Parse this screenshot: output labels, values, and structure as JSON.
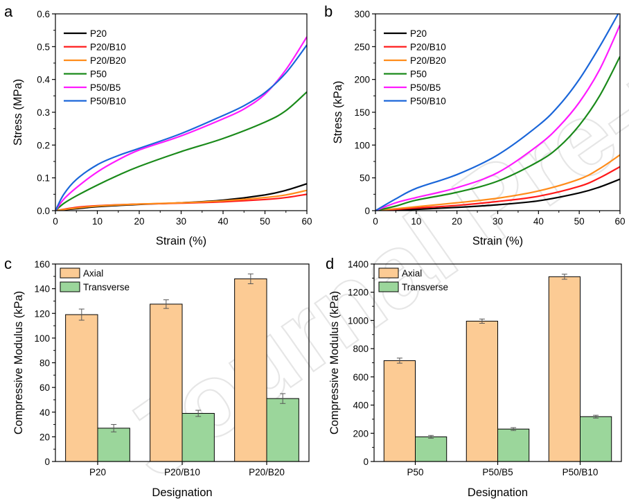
{
  "watermark": "Journal Pre-proofs",
  "colors": {
    "P20": "#000000",
    "P20/B10": "#ff1a1a",
    "P20/B20": "#ff8c1a",
    "P50": "#1a8a1a",
    "P50/B5": "#ff1aff",
    "P50/B10": "#1a66d9",
    "axial": "#fccb94",
    "transverse": "#9bd69b"
  },
  "chart_data": [
    {
      "panel": "a",
      "type": "line",
      "xlabel": "Strain (%)",
      "ylabel": "Stress (MPa)",
      "xlim": [
        0,
        60
      ],
      "ylim": [
        0,
        0.6
      ],
      "xticks": [
        "0",
        "10",
        "20",
        "30",
        "40",
        "50",
        "60"
      ],
      "yticks": [
        "0.0",
        "0.1",
        "0.2",
        "0.3",
        "0.4",
        "0.5",
        "0.6"
      ],
      "legend": [
        "P20",
        "P20/B10",
        "P20/B20",
        "P50",
        "P50/B5",
        "P50/B10"
      ],
      "series": [
        {
          "name": "P20",
          "x": [
            0,
            5,
            10,
            20,
            30,
            40,
            50,
            55,
            60
          ],
          "y": [
            0,
            0.006,
            0.012,
            0.019,
            0.024,
            0.032,
            0.048,
            0.062,
            0.082
          ]
        },
        {
          "name": "P20/B10",
          "x": [
            0,
            5,
            10,
            20,
            30,
            40,
            50,
            55,
            60
          ],
          "y": [
            0,
            0.01,
            0.015,
            0.02,
            0.023,
            0.027,
            0.034,
            0.04,
            0.05
          ]
        },
        {
          "name": "P20/B20",
          "x": [
            0,
            5,
            10,
            20,
            30,
            40,
            50,
            55,
            60
          ],
          "y": [
            0,
            0.008,
            0.014,
            0.02,
            0.024,
            0.03,
            0.04,
            0.048,
            0.062
          ]
        },
        {
          "name": "P50",
          "x": [
            0,
            2,
            5,
            10,
            15,
            20,
            30,
            40,
            50,
            55,
            60
          ],
          "y": [
            0,
            0.022,
            0.045,
            0.078,
            0.108,
            0.135,
            0.18,
            0.22,
            0.27,
            0.305,
            0.362
          ]
        },
        {
          "name": "P50/B5",
          "x": [
            0,
            2,
            5,
            10,
            15,
            20,
            30,
            40,
            45,
            50,
            55,
            60
          ],
          "y": [
            0,
            0.035,
            0.07,
            0.118,
            0.155,
            0.185,
            0.228,
            0.28,
            0.31,
            0.355,
            0.43,
            0.53
          ]
        },
        {
          "name": "P50/B10",
          "x": [
            0,
            2,
            5,
            10,
            15,
            20,
            30,
            40,
            45,
            50,
            55,
            60
          ],
          "y": [
            0,
            0.05,
            0.095,
            0.14,
            0.168,
            0.19,
            0.235,
            0.29,
            0.32,
            0.36,
            0.42,
            0.505
          ]
        }
      ]
    },
    {
      "panel": "b",
      "type": "line",
      "xlabel": "Strain (%)",
      "ylabel": "Stress (kPa)",
      "xlim": [
        0,
        60
      ],
      "ylim": [
        0,
        300
      ],
      "xticks": [
        "0",
        "10",
        "20",
        "30",
        "40",
        "50",
        "60"
      ],
      "yticks": [
        "0",
        "50",
        "100",
        "150",
        "200",
        "250",
        "300"
      ],
      "legend": [
        "P20",
        "P20/B10",
        "P20/B20",
        "P50",
        "P50/B5",
        "P50/B10"
      ],
      "series": [
        {
          "name": "P20",
          "x": [
            0,
            10,
            20,
            30,
            40,
            50,
            55,
            60
          ],
          "y": [
            0,
            2,
            5,
            9,
            15,
            27,
            36,
            48
          ]
        },
        {
          "name": "P20/B10",
          "x": [
            0,
            10,
            20,
            30,
            40,
            50,
            55,
            60
          ],
          "y": [
            0,
            4,
            8,
            14,
            22,
            37,
            50,
            67
          ]
        },
        {
          "name": "P20/B20",
          "x": [
            0,
            10,
            20,
            30,
            40,
            50,
            55,
            60
          ],
          "y": [
            0,
            6,
            12,
            19,
            30,
            48,
            64,
            85
          ]
        },
        {
          "name": "P50",
          "x": [
            0,
            5,
            10,
            20,
            30,
            40,
            45,
            50,
            55,
            60
          ],
          "y": [
            0,
            7,
            16,
            28,
            45,
            75,
            97,
            130,
            175,
            235
          ]
        },
        {
          "name": "P50/B5",
          "x": [
            0,
            5,
            10,
            20,
            30,
            40,
            45,
            50,
            55,
            60
          ],
          "y": [
            0,
            12,
            20,
            35,
            58,
            100,
            128,
            165,
            215,
            283
          ]
        },
        {
          "name": "P50/B10",
          "x": [
            0,
            5,
            10,
            20,
            30,
            40,
            45,
            50,
            55,
            60
          ],
          "y": [
            0,
            18,
            34,
            55,
            85,
            130,
            160,
            200,
            250,
            305
          ]
        }
      ]
    },
    {
      "panel": "c",
      "type": "bar",
      "xlabel": "Designation",
      "ylabel": "Compressive Modulus (kPa)",
      "ylim": [
        0,
        160
      ],
      "yticks": [
        "0",
        "20",
        "40",
        "60",
        "80",
        "100",
        "120",
        "140",
        "160"
      ],
      "categories": [
        "P20",
        "P20/B10",
        "P20/B20"
      ],
      "series": [
        {
          "name": "Axial",
          "values": [
            119,
            127.5,
            148
          ],
          "errors": [
            4.5,
            3.5,
            4
          ]
        },
        {
          "name": "Transverse",
          "values": [
            27,
            39,
            51
          ],
          "errors": [
            3,
            2.5,
            4
          ]
        }
      ]
    },
    {
      "panel": "d",
      "type": "bar",
      "xlabel": "Designation",
      "ylabel": "Compressive Modulus (kPa)",
      "ylim": [
        0,
        1400
      ],
      "yticks": [
        "0",
        "200",
        "400",
        "600",
        "800",
        "1000",
        "1200",
        "1400"
      ],
      "categories": [
        "P50",
        "P50/B5",
        "P50/B10"
      ],
      "series": [
        {
          "name": "Axial",
          "values": [
            715,
            995,
            1310
          ],
          "errors": [
            18,
            15,
            18
          ]
        },
        {
          "name": "Transverse",
          "values": [
            175,
            230,
            318
          ],
          "errors": [
            10,
            10,
            10
          ]
        }
      ]
    }
  ]
}
